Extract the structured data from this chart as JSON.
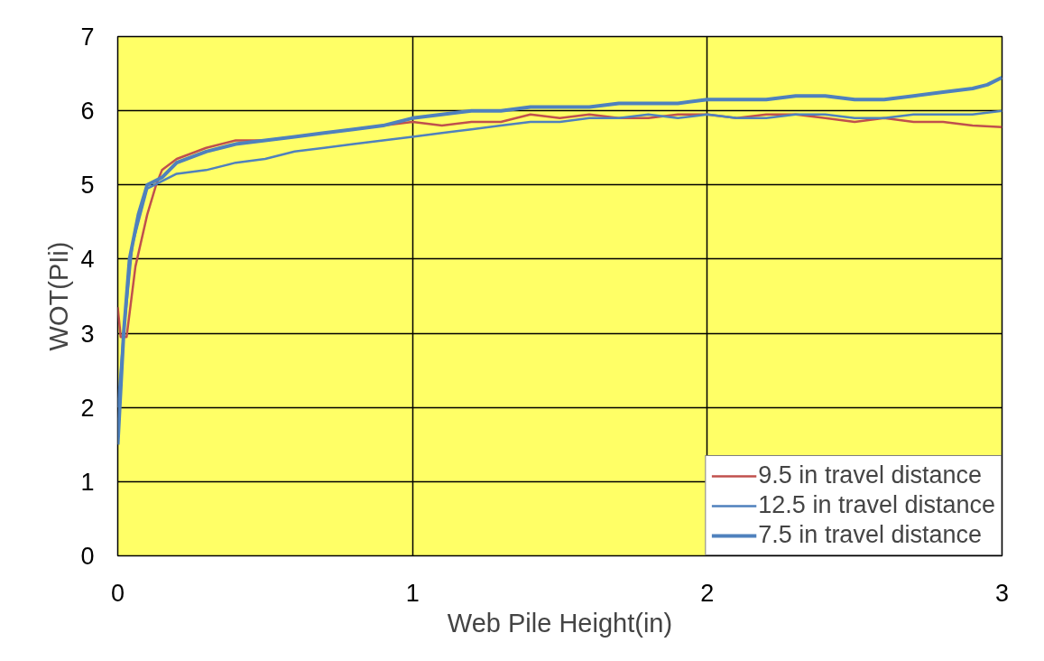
{
  "chart_data": {
    "type": "line",
    "xlabel": "Web Pile Height(in)",
    "ylabel": "WOT(PIi)",
    "xlim": [
      0,
      3
    ],
    "xticks": [
      0,
      1,
      2,
      3
    ],
    "ylim": [
      0,
      7
    ],
    "yticks": [
      0,
      1,
      2,
      3,
      4,
      5,
      6,
      7
    ],
    "grid": true,
    "legend": "bottom right",
    "marker": "none",
    "line_style": "solid",
    "series": [
      {
        "name": "9.5 in travel distance",
        "color": "#c0504d",
        "x": [
          0,
          0.01,
          0.03,
          0.06,
          0.1,
          0.13,
          0.15,
          0.2,
          0.3,
          0.4,
          0.5,
          0.6,
          0.7,
          0.8,
          0.9,
          1.0,
          1.1,
          1.2,
          1.3,
          1.4,
          1.5,
          1.6,
          1.7,
          1.8,
          1.9,
          2.0,
          2.1,
          2.2,
          2.3,
          2.4,
          2.5,
          2.6,
          2.7,
          2.8,
          2.9,
          3.0
        ],
        "values": [
          3.35,
          2.95,
          2.95,
          3.9,
          4.6,
          5.0,
          5.2,
          5.35,
          5.5,
          5.6,
          5.6,
          5.65,
          5.7,
          5.75,
          5.8,
          5.85,
          5.8,
          5.85,
          5.85,
          5.95,
          5.9,
          5.95,
          5.9,
          5.9,
          5.95,
          5.95,
          5.9,
          5.95,
          5.95,
          5.9,
          5.85,
          5.9,
          5.85,
          5.85,
          5.8,
          5.78
        ]
      },
      {
        "name": "12.5 in travel distance",
        "color": "#4f81bd",
        "x": [
          0,
          0.02,
          0.05,
          0.1,
          0.15,
          0.2,
          0.3,
          0.4,
          0.5,
          0.6,
          0.7,
          0.8,
          0.9,
          1.0,
          1.1,
          1.2,
          1.3,
          1.4,
          1.5,
          1.6,
          1.7,
          1.8,
          1.9,
          2.0,
          2.1,
          2.2,
          2.3,
          2.4,
          2.5,
          2.6,
          2.7,
          2.8,
          2.9,
          3.0
        ],
        "values": [
          2.0,
          3.0,
          4.2,
          4.95,
          5.05,
          5.15,
          5.2,
          5.3,
          5.35,
          5.45,
          5.5,
          5.55,
          5.6,
          5.65,
          5.7,
          5.75,
          5.8,
          5.85,
          5.85,
          5.9,
          5.9,
          5.95,
          5.9,
          5.95,
          5.9,
          5.9,
          5.95,
          5.95,
          5.9,
          5.9,
          5.95,
          5.95,
          5.95,
          6.0
        ]
      },
      {
        "name": "7.5 in travel distance",
        "color": "#4f81bd",
        "x": [
          0,
          0.02,
          0.04,
          0.07,
          0.1,
          0.15,
          0.2,
          0.3,
          0.4,
          0.5,
          0.6,
          0.7,
          0.8,
          0.9,
          1.0,
          1.1,
          1.2,
          1.3,
          1.4,
          1.5,
          1.6,
          1.7,
          1.8,
          1.9,
          2.0,
          2.1,
          2.2,
          2.3,
          2.4,
          2.5,
          2.6,
          2.7,
          2.8,
          2.9,
          2.95,
          3.0
        ],
        "values": [
          1.5,
          3.0,
          4.0,
          4.6,
          5.0,
          5.1,
          5.3,
          5.45,
          5.55,
          5.6,
          5.65,
          5.7,
          5.75,
          5.8,
          5.9,
          5.95,
          6.0,
          6.0,
          6.05,
          6.05,
          6.05,
          6.1,
          6.1,
          6.1,
          6.15,
          6.15,
          6.15,
          6.2,
          6.2,
          6.15,
          6.15,
          6.2,
          6.25,
          6.3,
          6.35,
          6.45
        ]
      }
    ]
  }
}
